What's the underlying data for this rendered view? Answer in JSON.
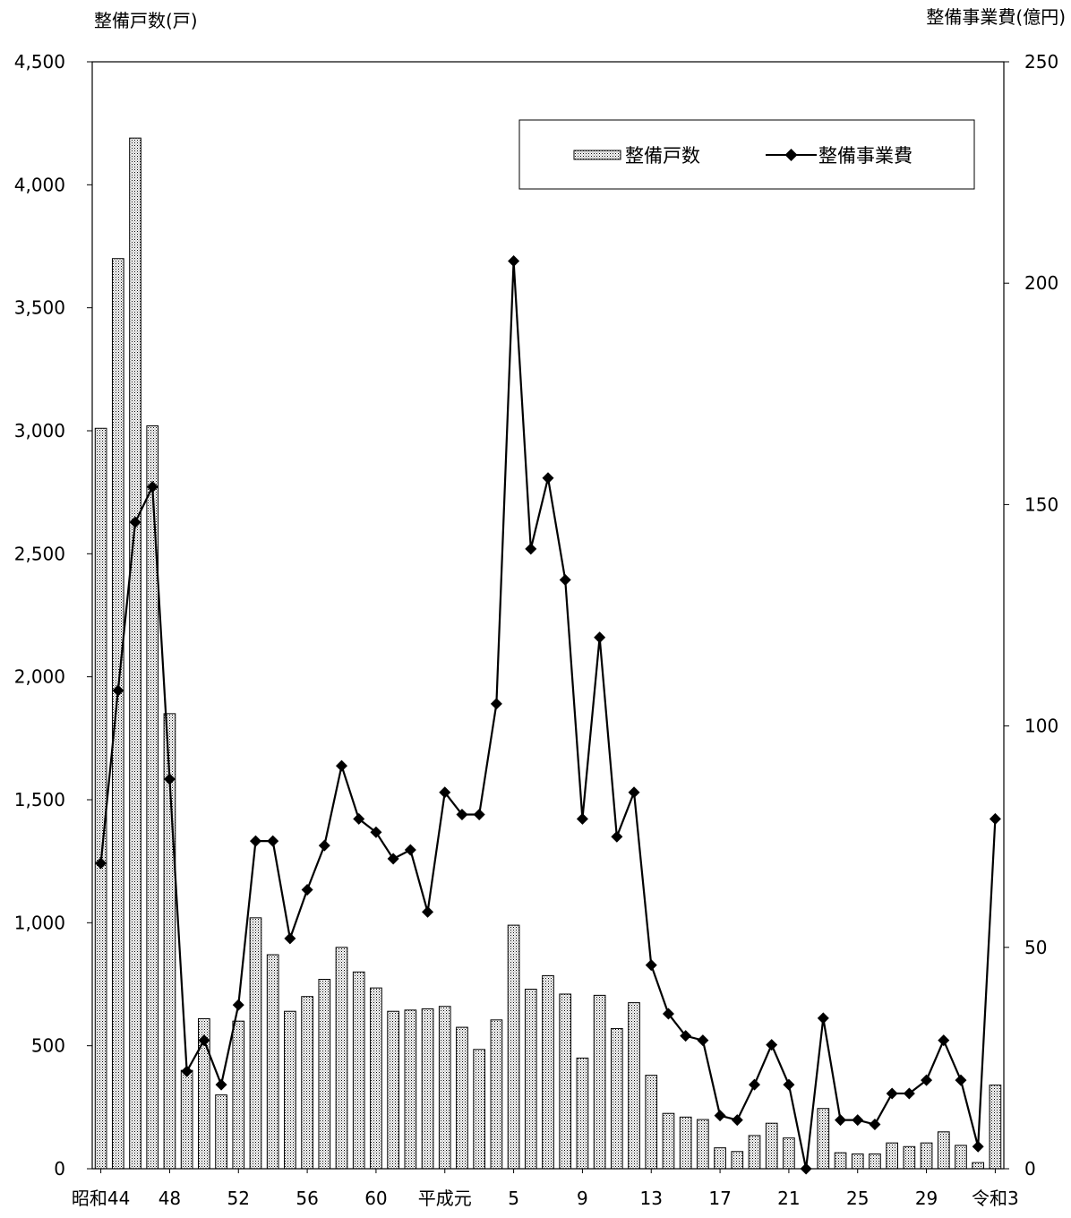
{
  "chart_data": {
    "type": "bar",
    "combo": "bar + line (dual axis)",
    "y_left_label": "整備戸数(戸)",
    "y_right_label": "整備事業費(億円)",
    "y_left_lim": [
      0,
      4500
    ],
    "y_right_lim": [
      0,
      250
    ],
    "y_left_ticks": [
      "0",
      "500",
      "1,000",
      "1,500",
      "2,000",
      "2,500",
      "3,000",
      "3,500",
      "4,000",
      "4,500"
    ],
    "y_right_ticks": [
      "0",
      "50",
      "100",
      "150",
      "200",
      "250"
    ],
    "x_tick_labels": [
      {
        "index": 0,
        "label": "昭和44"
      },
      {
        "index": 4,
        "label": "48"
      },
      {
        "index": 8,
        "label": "52"
      },
      {
        "index": 12,
        "label": "56"
      },
      {
        "index": 16,
        "label": "60"
      },
      {
        "index": 20,
        "label": "平成元"
      },
      {
        "index": 24,
        "label": "5"
      },
      {
        "index": 28,
        "label": "9"
      },
      {
        "index": 32,
        "label": "13"
      },
      {
        "index": 36,
        "label": "17"
      },
      {
        "index": 40,
        "label": "21"
      },
      {
        "index": 44,
        "label": "25"
      },
      {
        "index": 48,
        "label": "29"
      },
      {
        "index": 52,
        "label": "令和3"
      }
    ],
    "legend": {
      "position": "top-right",
      "bar_label": "整備戸数",
      "line_label": "整備事業費"
    },
    "grid": false,
    "colors": {
      "bar_fill": "#ffffff",
      "bar_stipple": "#000000",
      "line": "#000000",
      "marker": "#000000"
    },
    "series": [
      {
        "name": "整備戸数",
        "axis": "left",
        "type": "bar",
        "values": [
          3010,
          3700,
          4190,
          3020,
          1850,
          400,
          610,
          300,
          600,
          1020,
          870,
          640,
          700,
          770,
          900,
          800,
          735,
          640,
          645,
          650,
          660,
          575,
          485,
          605,
          990,
          730,
          785,
          710,
          450,
          705,
          570,
          675,
          380,
          225,
          210,
          200,
          85,
          70,
          135,
          185,
          125,
          0,
          245,
          65,
          60,
          60,
          105,
          90,
          105,
          150,
          95,
          25,
          340
        ]
      },
      {
        "name": "整備事業費",
        "axis": "right",
        "type": "line",
        "values": [
          69,
          108,
          146,
          154,
          88,
          22,
          29,
          19,
          37,
          74,
          74,
          52,
          63,
          73,
          91,
          79,
          76,
          70,
          72,
          58,
          85,
          80,
          80,
          105,
          205,
          140,
          156,
          133,
          79,
          120,
          75,
          85,
          46,
          35,
          30,
          29,
          12,
          11,
          19,
          28,
          19,
          0,
          34,
          11,
          11,
          10,
          17,
          17,
          20,
          29,
          20,
          5,
          79
        ]
      }
    ]
  }
}
